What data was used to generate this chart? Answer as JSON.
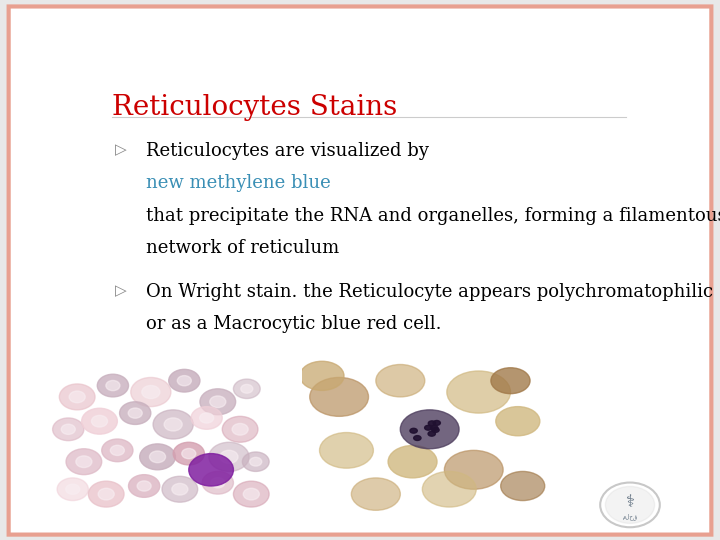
{
  "title": "Reticulocytes Stains",
  "title_color": "#cc0000",
  "background_color": "#e8e8e8",
  "slide_bg": "#ffffff",
  "border_color": "#e8a090",
  "bullet1_line3": "that precipitate the RNA and organelles, forming a filamentous",
  "bullet1_line4": "network of reticulum",
  "bullet2_line1": "On Wright stain. the Reticulocyte appears polychromatophilic",
  "bullet2_line2": "or as a Macrocytic blue red cell.",
  "img1_color": "#f5f0ec",
  "img2_color": "#e8d8a8",
  "font_size": 13,
  "title_font_size": 20,
  "link_color": "#3a8fb5"
}
